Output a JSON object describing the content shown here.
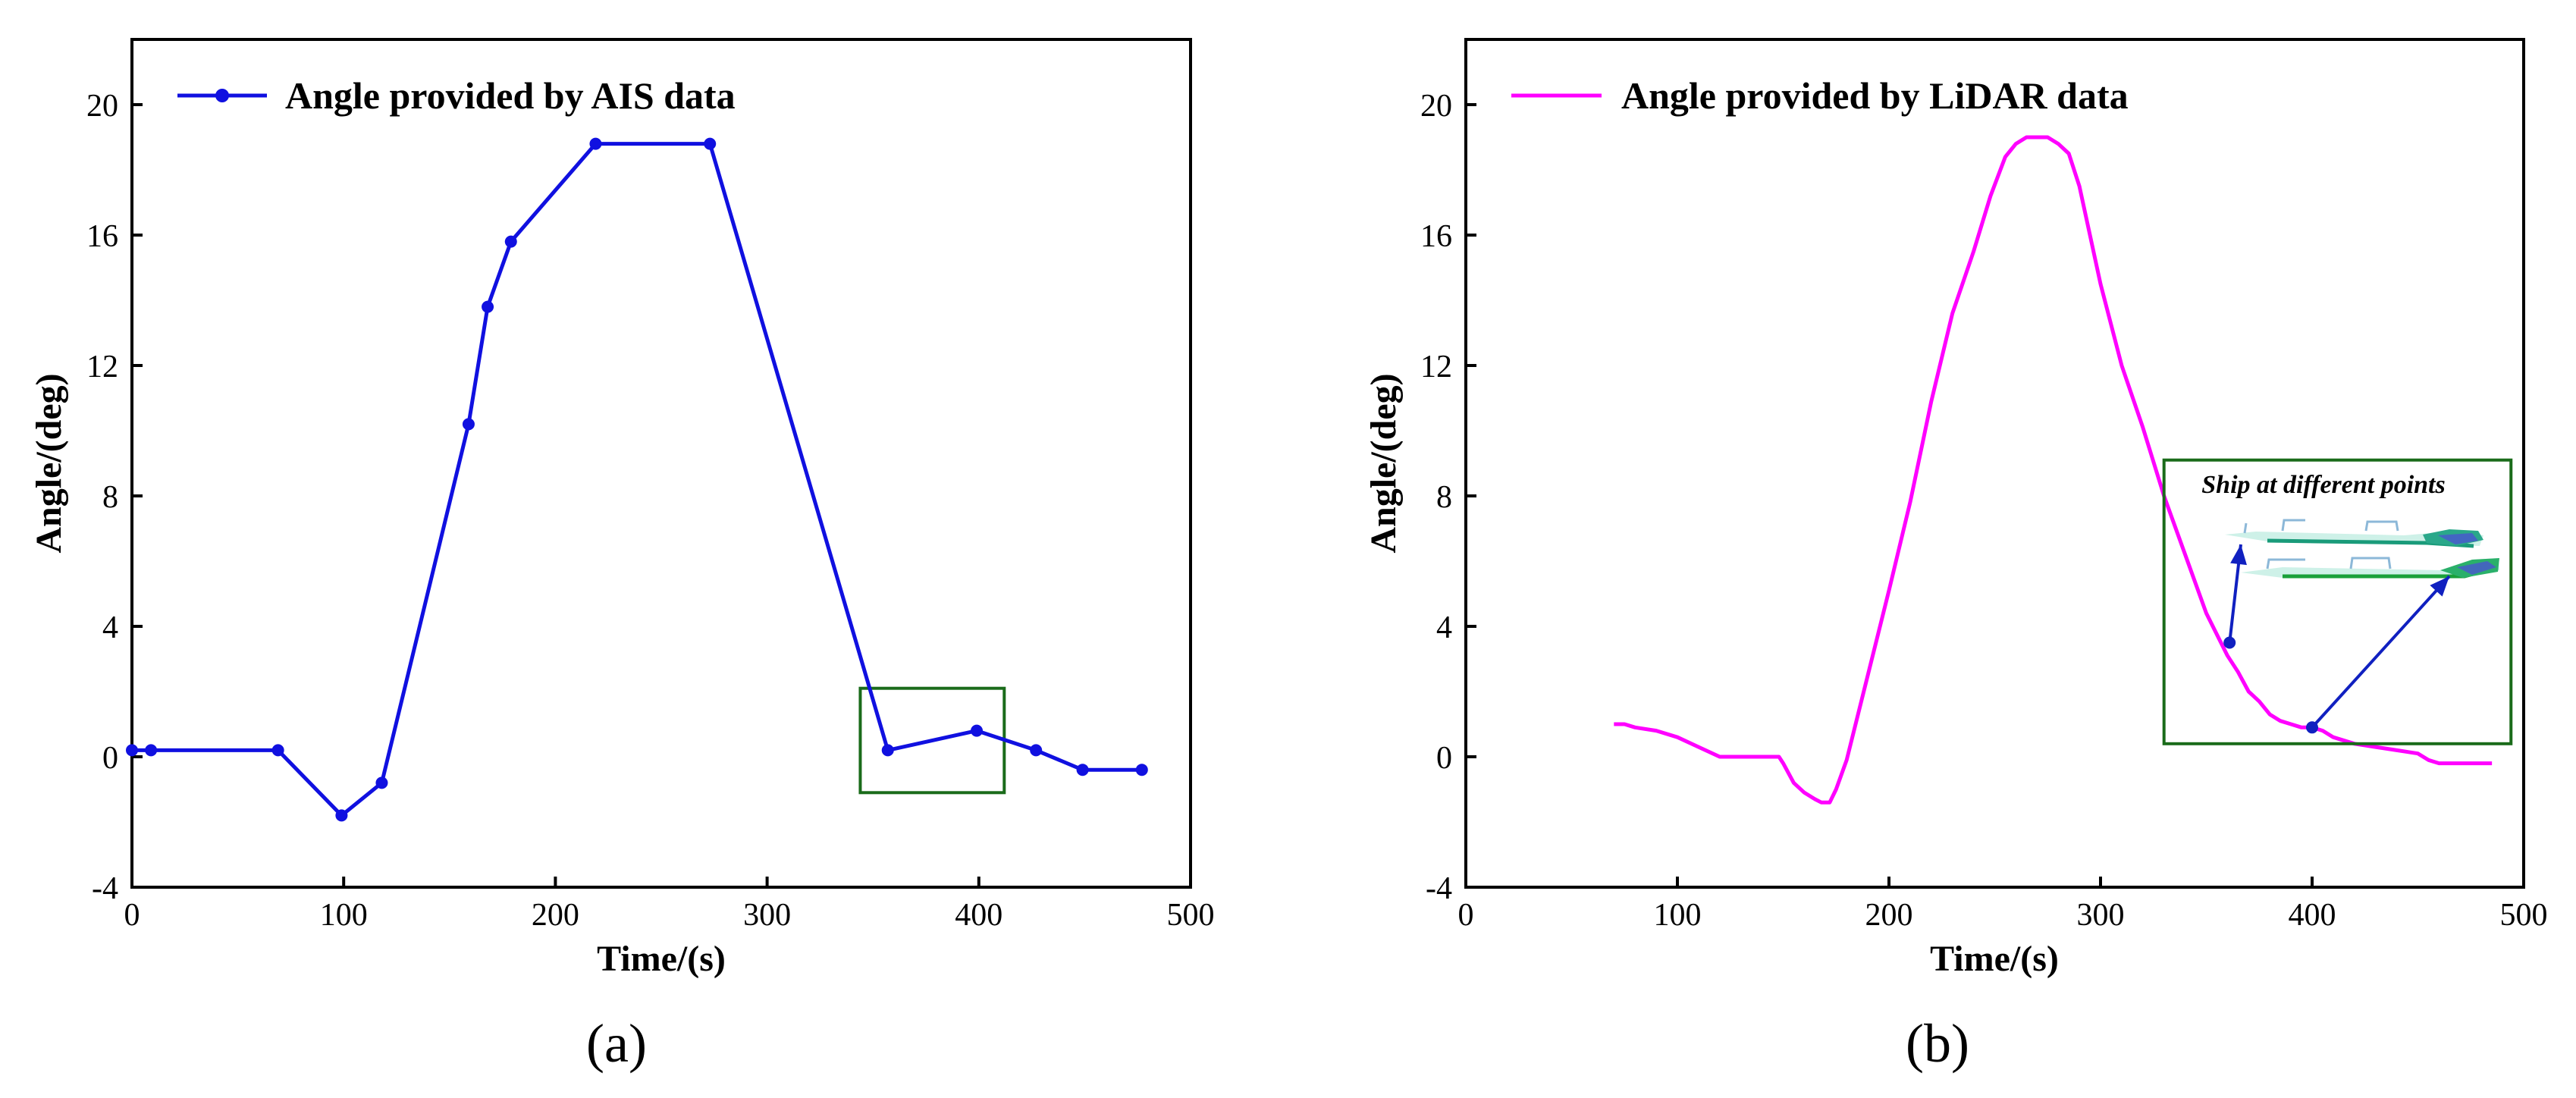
{
  "colors": {
    "ais": "#1010e0",
    "lidar": "#ff00ff",
    "box": "#1a6b1a",
    "inset_arrow": "#1020c0"
  },
  "chart_data": [
    {
      "type": "line",
      "panel_label": "(a)",
      "xlabel": "Time/(s)",
      "ylabel": "Angle/(deg)",
      "xlim": [
        0,
        500
      ],
      "ylim": [
        -4,
        22
      ],
      "x_ticks": [
        0,
        100,
        200,
        300,
        400,
        500
      ],
      "y_ticks": [
        -4,
        0,
        4,
        8,
        12,
        16,
        20
      ],
      "grid": false,
      "legend_position": "top-left",
      "series": [
        {
          "name": "Angle provided by AIS data",
          "marker": "circle",
          "x": [
            0,
            9,
            69,
            99,
            118,
            159,
            168,
            179,
            219,
            273,
            357,
            399,
            427,
            449,
            477
          ],
          "y": [
            0.2,
            0.2,
            0.2,
            -1.8,
            -0.8,
            10.2,
            13.8,
            15.8,
            18.8,
            18.8,
            0.2,
            0.8,
            0.2,
            -0.4,
            -0.4
          ]
        }
      ],
      "highlight_box": {
        "x": [
          344,
          412
        ],
        "y": [
          -1.1,
          2.1
        ]
      }
    },
    {
      "type": "line",
      "panel_label": "(b)",
      "xlabel": "Time/(s)",
      "ylabel": "Angle/(deg)",
      "xlim": [
        0,
        500
      ],
      "ylim": [
        -4,
        22
      ],
      "x_ticks": [
        0,
        100,
        200,
        300,
        400,
        500
      ],
      "y_ticks": [
        -4,
        0,
        4,
        8,
        12,
        16,
        20
      ],
      "grid": false,
      "legend_position": "top-left",
      "series": [
        {
          "name": "Angle provided by LiDAR data",
          "x": [
            70,
            75,
            80,
            90,
            100,
            110,
            120,
            125,
            130,
            140,
            148,
            150,
            155,
            160,
            165,
            168,
            172,
            175,
            180,
            185,
            190,
            195,
            200,
            210,
            220,
            230,
            240,
            248,
            255,
            260,
            265,
            270,
            275,
            280,
            285,
            290,
            300,
            310,
            320,
            330,
            340,
            350,
            360,
            365,
            370,
            375,
            380,
            385,
            390,
            395,
            400,
            405,
            410,
            420,
            430,
            440,
            450,
            455,
            460,
            470,
            485
          ],
          "y": [
            1.0,
            1.0,
            0.9,
            0.8,
            0.6,
            0.3,
            0.0,
            0.0,
            0.0,
            0.0,
            0.0,
            -0.2,
            -0.8,
            -1.1,
            -1.3,
            -1.4,
            -1.4,
            -1.0,
            -0.1,
            1.2,
            2.5,
            3.8,
            5.1,
            7.8,
            10.9,
            13.6,
            15.5,
            17.2,
            18.4,
            18.8,
            19.0,
            19.0,
            19.0,
            18.8,
            18.5,
            17.5,
            14.5,
            12.0,
            10.1,
            8.0,
            6.2,
            4.4,
            3.1,
            2.6,
            2.0,
            1.7,
            1.3,
            1.1,
            1.0,
            0.9,
            0.9,
            0.8,
            0.6,
            0.4,
            0.3,
            0.2,
            0.1,
            -0.1,
            -0.2,
            -0.2,
            -0.2
          ]
        }
      ],
      "inset": {
        "title": "Ship at different  points",
        "box": {
          "x": [
            330,
            494
          ],
          "y": [
            0.4,
            9.1
          ]
        },
        "points": [
          {
            "x": 361,
            "y": 3.5
          },
          {
            "x": 400,
            "y": 0.9
          }
        ]
      }
    }
  ]
}
